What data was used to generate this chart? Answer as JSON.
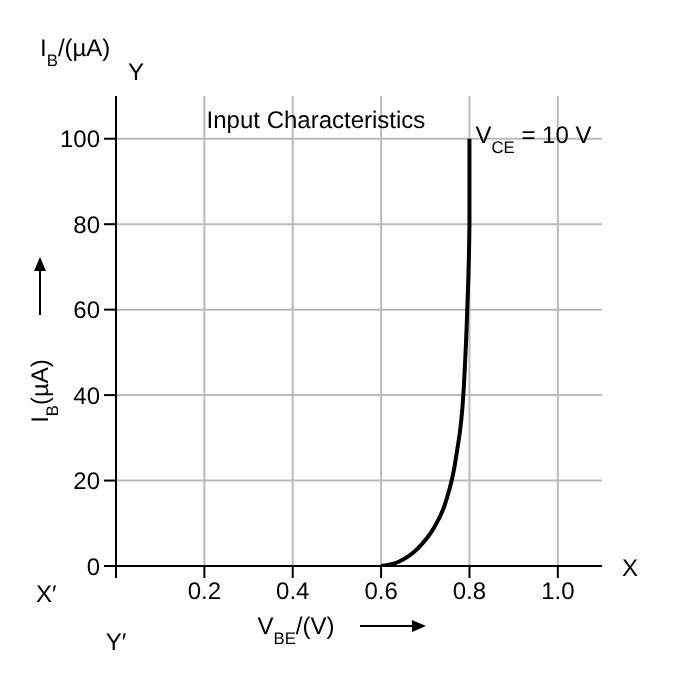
{
  "chart_data": {
    "type": "line",
    "title": "Input Characteristics",
    "xlabel": "V$_{BE}$/(V)",
    "ylabel": "I$_{B}$(µA)",
    "annotations": [
      "I$_{B}$/(µA)",
      "Y",
      "Y′",
      "X",
      "X′",
      {
        "text": "V$_{CE}$ = 10 V",
        "x": 0.8,
        "y": 100
      }
    ],
    "x": [
      0.6,
      0.64,
      0.685,
      0.72,
      0.745,
      0.77,
      0.787,
      0.795,
      0.8,
      0.8
    ],
    "series": [
      {
        "color": "#000000",
        "values": [
          0,
          1,
          4.3,
          9,
          14.6,
          25.7,
          41.5,
          60,
          80,
          100
        ]
      }
    ],
    "xlim": [
      0,
      1.1
    ],
    "ylim": [
      0,
      110
    ],
    "xticks": [
      {
        "value": 0,
        "label": null
      },
      0.2,
      0.4,
      0.6,
      0.8,
      {
        "value": 1,
        "label": "1.0"
      }
    ],
    "yticks": [
      0,
      20,
      40,
      60,
      80,
      100
    ],
    "grid": true,
    "marker": "none",
    "line_style": "solid"
  }
}
